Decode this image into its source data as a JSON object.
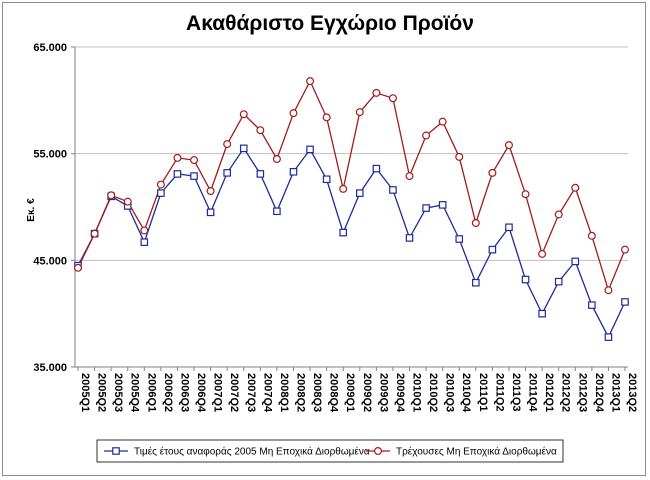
{
  "colors": {
    "series1": "#1f2a9c",
    "series2": "#a31b1b",
    "grid": "#bfbfbf",
    "axis": "#808080"
  },
  "chart_data": {
    "type": "line",
    "title": "Ακαθάριστο Εγχώριο Προϊόν",
    "xlabel": "",
    "ylabel": "Εκ. €",
    "ylim": [
      35000,
      65000
    ],
    "yticks": [
      35000,
      45000,
      55000,
      65000
    ],
    "ytick_labels": [
      "35.000",
      "45.000",
      "55.000",
      "65.000"
    ],
    "categories": [
      "2005Q1",
      "2005Q2",
      "2005Q3",
      "2005Q4",
      "2006Q1",
      "2006Q2",
      "2006Q3",
      "2006Q4",
      "2007Q1",
      "2007Q2",
      "2007Q3",
      "2007Q4",
      "2008Q1",
      "2008Q2",
      "2008Q3",
      "2008Q4",
      "2009Q1",
      "2009Q2",
      "2009Q3",
      "2009Q4",
      "2010Q1",
      "2010Q2",
      "2010Q3",
      "2010Q4",
      "2011Q1",
      "2011Q2",
      "2011Q3",
      "2011Q4",
      "2012Q1",
      "2012Q2",
      "2012Q3",
      "2012Q4",
      "2013Q1",
      "2013Q2"
    ],
    "legend_position": "bottom",
    "series": [
      {
        "name": "Τιμές έτους αναφοράς 2005 Μη Εποχικά Διορθωμένα",
        "marker": "square",
        "values": [
          44500,
          47500,
          51000,
          50100,
          46700,
          51300,
          53100,
          52900,
          49500,
          53200,
          55500,
          53100,
          49600,
          53300,
          55400,
          52600,
          47600,
          51300,
          53600,
          51600,
          47100,
          49900,
          50200,
          47000,
          42900,
          46000,
          48100,
          43200,
          40000,
          43000,
          44900,
          40800,
          37800,
          41100
        ]
      },
      {
        "name": "Τρέχουσες Μη Εποχικά Διορθωμένα",
        "marker": "circle",
        "values": [
          44300,
          47500,
          51100,
          50500,
          47800,
          52100,
          54600,
          54400,
          51500,
          55900,
          58700,
          57200,
          54500,
          58800,
          61800,
          58400,
          51700,
          58900,
          60700,
          60200,
          52900,
          56700,
          58000,
          54700,
          48500,
          53200,
          55800,
          51200,
          45600,
          49300,
          51800,
          47300,
          42200,
          46000
        ]
      }
    ]
  }
}
